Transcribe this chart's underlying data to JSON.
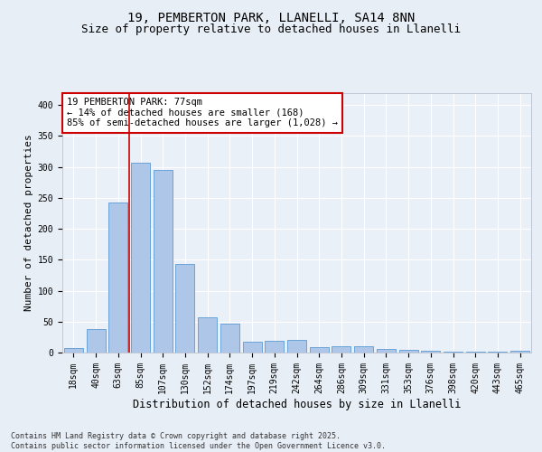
{
  "title1": "19, PEMBERTON PARK, LLANELLI, SA14 8NN",
  "title2": "Size of property relative to detached houses in Llanelli",
  "xlabel": "Distribution of detached houses by size in Llanelli",
  "ylabel": "Number of detached properties",
  "categories": [
    "18sqm",
    "40sqm",
    "63sqm",
    "85sqm",
    "107sqm",
    "130sqm",
    "152sqm",
    "174sqm",
    "197sqm",
    "219sqm",
    "242sqm",
    "264sqm",
    "286sqm",
    "309sqm",
    "331sqm",
    "353sqm",
    "376sqm",
    "398sqm",
    "420sqm",
    "443sqm",
    "465sqm"
  ],
  "values": [
    7,
    38,
    243,
    307,
    295,
    143,
    57,
    47,
    18,
    19,
    20,
    9,
    10,
    10,
    6,
    4,
    3,
    2,
    1,
    1,
    3
  ],
  "bar_color": "#aec6e8",
  "bar_edge_color": "#5b9bd5",
  "vline_x": 2.5,
  "vline_color": "#cc0000",
  "annotation_text": "19 PEMBERTON PARK: 77sqm\n← 14% of detached houses are smaller (168)\n85% of semi-detached houses are larger (1,028) →",
  "annotation_box_color": "#ffffff",
  "annotation_border_color": "#cc0000",
  "ylim": [
    0,
    420
  ],
  "yticks": [
    0,
    50,
    100,
    150,
    200,
    250,
    300,
    350,
    400
  ],
  "bg_color": "#e8eef6",
  "plot_bg_color": "#eaf0f8",
  "footer": "Contains HM Land Registry data © Crown copyright and database right 2025.\nContains public sector information licensed under the Open Government Licence v3.0.",
  "title1_fontsize": 10,
  "title2_fontsize": 9,
  "xlabel_fontsize": 8.5,
  "ylabel_fontsize": 8,
  "tick_fontsize": 7,
  "annotation_fontsize": 7.5,
  "footer_fontsize": 6
}
